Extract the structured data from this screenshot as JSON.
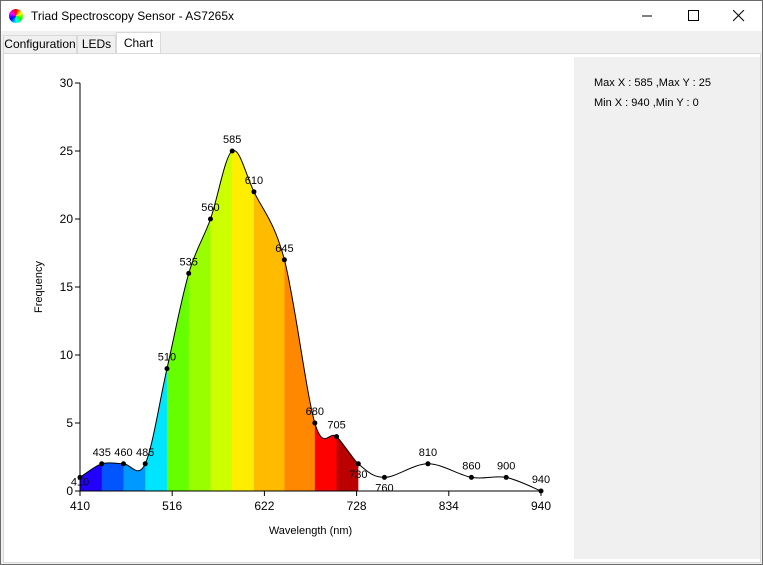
{
  "window": {
    "title": "Triad Spectroscopy Sensor - AS7265x",
    "icon": "color-wheel-icon",
    "controls": [
      "minimize-icon",
      "maximize-icon",
      "close-icon"
    ]
  },
  "tabs": [
    {
      "label": "Configuration",
      "active": false
    },
    {
      "label": "LEDs",
      "active": false
    },
    {
      "label": "Chart",
      "active": true
    }
  ],
  "stats": {
    "max_line": "Max X : 585 ,Max Y : 25",
    "min_line": "Min X : 940 ,Min Y : 0"
  },
  "chart_data": {
    "type": "area",
    "xlabel": "Wavelength (nm)",
    "ylabel": "Frequency",
    "xlim": [
      410,
      940
    ],
    "ylim": [
      0,
      30
    ],
    "x_ticks": [
      410,
      516,
      622,
      728,
      834,
      940
    ],
    "y_ticks": [
      0,
      5,
      10,
      15,
      20,
      25,
      30
    ],
    "grid": false,
    "legend": "none",
    "series": [
      {
        "x": [
          410,
          435,
          460,
          485,
          510,
          535,
          560,
          585,
          610,
          645,
          680,
          705,
          730,
          760,
          810,
          860,
          900,
          940
        ],
        "values": [
          1,
          2,
          2,
          2,
          9,
          16,
          20,
          25,
          22,
          17,
          5,
          4,
          2,
          1,
          2,
          1,
          1,
          0
        ],
        "point_labels": [
          "410",
          "435",
          "460",
          "485",
          "510",
          "535",
          "560",
          "585",
          "610",
          "645",
          "680",
          "705",
          "730",
          "760",
          "810",
          "860",
          "900",
          "940"
        ]
      }
    ],
    "band_colors": [
      "#2200ff",
      "#0055ff",
      "#0099ff",
      "#00e5ff",
      "#66ff00",
      "#99ff00",
      "#ccff00",
      "#ffee00",
      "#ffbb00",
      "#ff8800",
      "#ff0000",
      "#ff0000",
      "#dd0000",
      "#bb0000"
    ]
  }
}
